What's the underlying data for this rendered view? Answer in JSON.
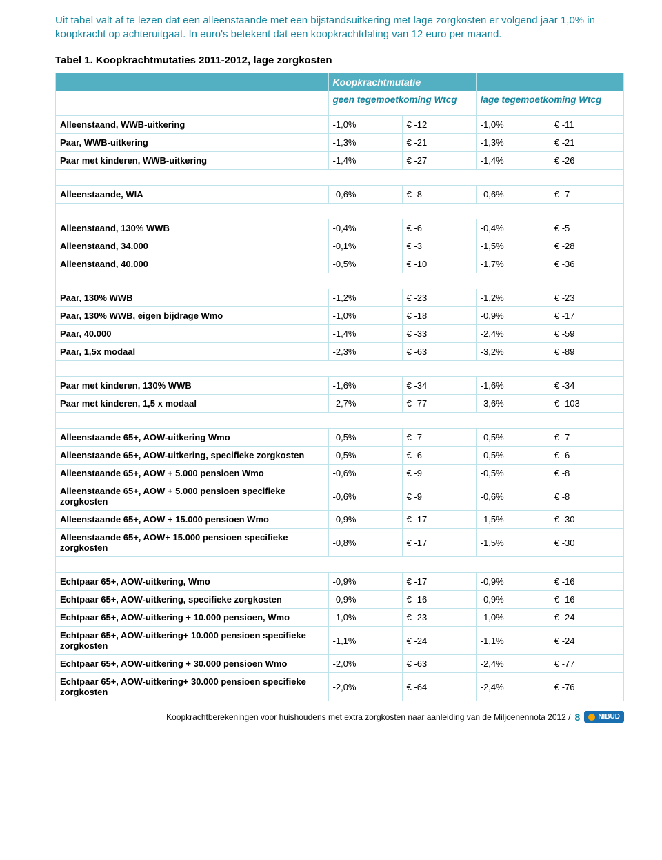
{
  "intro_lines": [
    "Uit tabel valt af te lezen dat een alleenstaande met een bijstandsuitkering met lage zorgkosten er volgend jaar 1,0% in koopkracht op achteruitgaat. In euro's betekent dat een koopkrachtdaling van 12 euro per maand."
  ],
  "table_caption": "Tabel 1. Koopkrachtmutaties 2011-2012, lage zorgkosten",
  "header_top": "Koopkrachtmutatie",
  "header_geen": "geen tegemoetkoming Wtcg",
  "header_lage": "lage tegemoetkoming Wtcg",
  "colors": {
    "teal_text": "#16869f",
    "header_bg": "#53b0c3",
    "border": "#bfe3ea",
    "badge_bg": "#1a6fb0",
    "badge_sun": "#f7a600"
  },
  "groups": [
    [
      {
        "label": "Alleenstaand, WWB-uitkering",
        "v1": "-1,0%",
        "v2": "€ -12",
        "v3": "-1,0%",
        "v4": "€ -11"
      },
      {
        "label": "Paar, WWB-uitkering",
        "v1": "-1,3%",
        "v2": "€ -21",
        "v3": "-1,3%",
        "v4": "€ -21"
      },
      {
        "label": "Paar met kinderen, WWB-uitkering",
        "v1": "-1,4%",
        "v2": "€ -27",
        "v3": "-1,4%",
        "v4": "€ -26"
      }
    ],
    [
      {
        "label": "Alleenstaande, WIA",
        "v1": "-0,6%",
        "v2": "€ -8",
        "v3": "-0,6%",
        "v4": "€ -7"
      }
    ],
    [
      {
        "label": "Alleenstaand, 130% WWB",
        "v1": "-0,4%",
        "v2": "€ -6",
        "v3": "-0,4%",
        "v4": "€ -5"
      },
      {
        "label": "Alleenstaand, 34.000",
        "v1": "-0,1%",
        "v2": "€ -3",
        "v3": "-1,5%",
        "v4": "€ -28"
      },
      {
        "label": "Alleenstaand, 40.000",
        "v1": "-0,5%",
        "v2": "€ -10",
        "v3": "-1,7%",
        "v4": "€ -36"
      }
    ],
    [
      {
        "label": "Paar, 130% WWB",
        "v1": "-1,2%",
        "v2": "€ -23",
        "v3": "-1,2%",
        "v4": "€ -23"
      },
      {
        "label": "Paar, 130% WWB, eigen bijdrage Wmo",
        "v1": "-1,0%",
        "v2": "€ -18",
        "v3": "-0,9%",
        "v4": "€ -17"
      },
      {
        "label": "Paar, 40.000",
        "v1": "-1,4%",
        "v2": "€ -33",
        "v3": "-2,4%",
        "v4": "€ -59"
      },
      {
        "label": "Paar, 1,5x modaal",
        "v1": "-2,3%",
        "v2": "€ -63",
        "v3": "-3,2%",
        "v4": "€ -89"
      }
    ],
    [
      {
        "label": "Paar met kinderen, 130% WWB",
        "v1": "-1,6%",
        "v2": "€ -34",
        "v3": "-1,6%",
        "v4": "€ -34"
      },
      {
        "label": "Paar met kinderen, 1,5 x modaal",
        "v1": "-2,7%",
        "v2": "€ -77",
        "v3": "-3,6%",
        "v4": "€ -103"
      }
    ],
    [
      {
        "label": "Alleenstaande 65+, AOW-uitkering Wmo",
        "v1": "-0,5%",
        "v2": "€ -7",
        "v3": "-0,5%",
        "v4": "€ -7"
      },
      {
        "label": "Alleenstaande 65+, AOW-uitkering, specifieke zorgkosten",
        "v1": "-0,5%",
        "v2": "€ -6",
        "v3": "-0,5%",
        "v4": "€ -6"
      },
      {
        "label": "Alleenstaande 65+, AOW + 5.000 pensioen Wmo",
        "v1": "-0,6%",
        "v2": "€ -9",
        "v3": "-0,5%",
        "v4": "€ -8"
      },
      {
        "label": "Alleenstaande 65+, AOW + 5.000 pensioen specifieke zorgkosten",
        "v1": "-0,6%",
        "v2": "€ -9",
        "v3": "-0,6%",
        "v4": "€ -8"
      },
      {
        "label": "Alleenstaande 65+, AOW + 15.000 pensioen Wmo",
        "v1": "-0,9%",
        "v2": "€ -17",
        "v3": "-1,5%",
        "v4": "€ -30"
      },
      {
        "label": "Alleenstaande 65+, AOW+ 15.000 pensioen specifieke zorgkosten",
        "v1": "-0,8%",
        "v2": "€ -17",
        "v3": "-1,5%",
        "v4": "€ -30"
      }
    ],
    [
      {
        "label": "Echtpaar 65+, AOW-uitkering, Wmo",
        "v1": "-0,9%",
        "v2": "€ -17",
        "v3": "-0,9%",
        "v4": "€ -16"
      },
      {
        "label": "Echtpaar 65+, AOW-uitkering, specifieke zorgkosten",
        "v1": "-0,9%",
        "v2": "€ -16",
        "v3": "-0,9%",
        "v4": "€ -16"
      },
      {
        "label": "Echtpaar 65+, AOW-uitkering + 10.000 pensioen, Wmo",
        "v1": "-1,0%",
        "v2": "€ -23",
        "v3": "-1,0%",
        "v4": "€ -24"
      },
      {
        "label": "Echtpaar 65+, AOW-uitkering+ 10.000 pensioen specifieke zorgkosten",
        "v1": "-1,1%",
        "v2": "€ -24",
        "v3": "-1,1%",
        "v4": "€ -24"
      },
      {
        "label": "Echtpaar 65+, AOW-uitkering + 30.000 pensioen Wmo",
        "v1": "-2,0%",
        "v2": "€ -63",
        "v3": "-2,4%",
        "v4": "€ -77"
      },
      {
        "label": "Echtpaar 65+, AOW-uitkering+ 30.000 pensioen specifieke zorgkosten",
        "v1": "-2,0%",
        "v2": "€ -64",
        "v3": "-2,4%",
        "v4": "€ -76"
      }
    ]
  ],
  "footer_text": "Koopkrachtberekeningen voor huishoudens met extra zorgkosten naar aanleiding van de Miljoenennota 2012 /",
  "page_number": "8",
  "badge_text": "NIBUD"
}
